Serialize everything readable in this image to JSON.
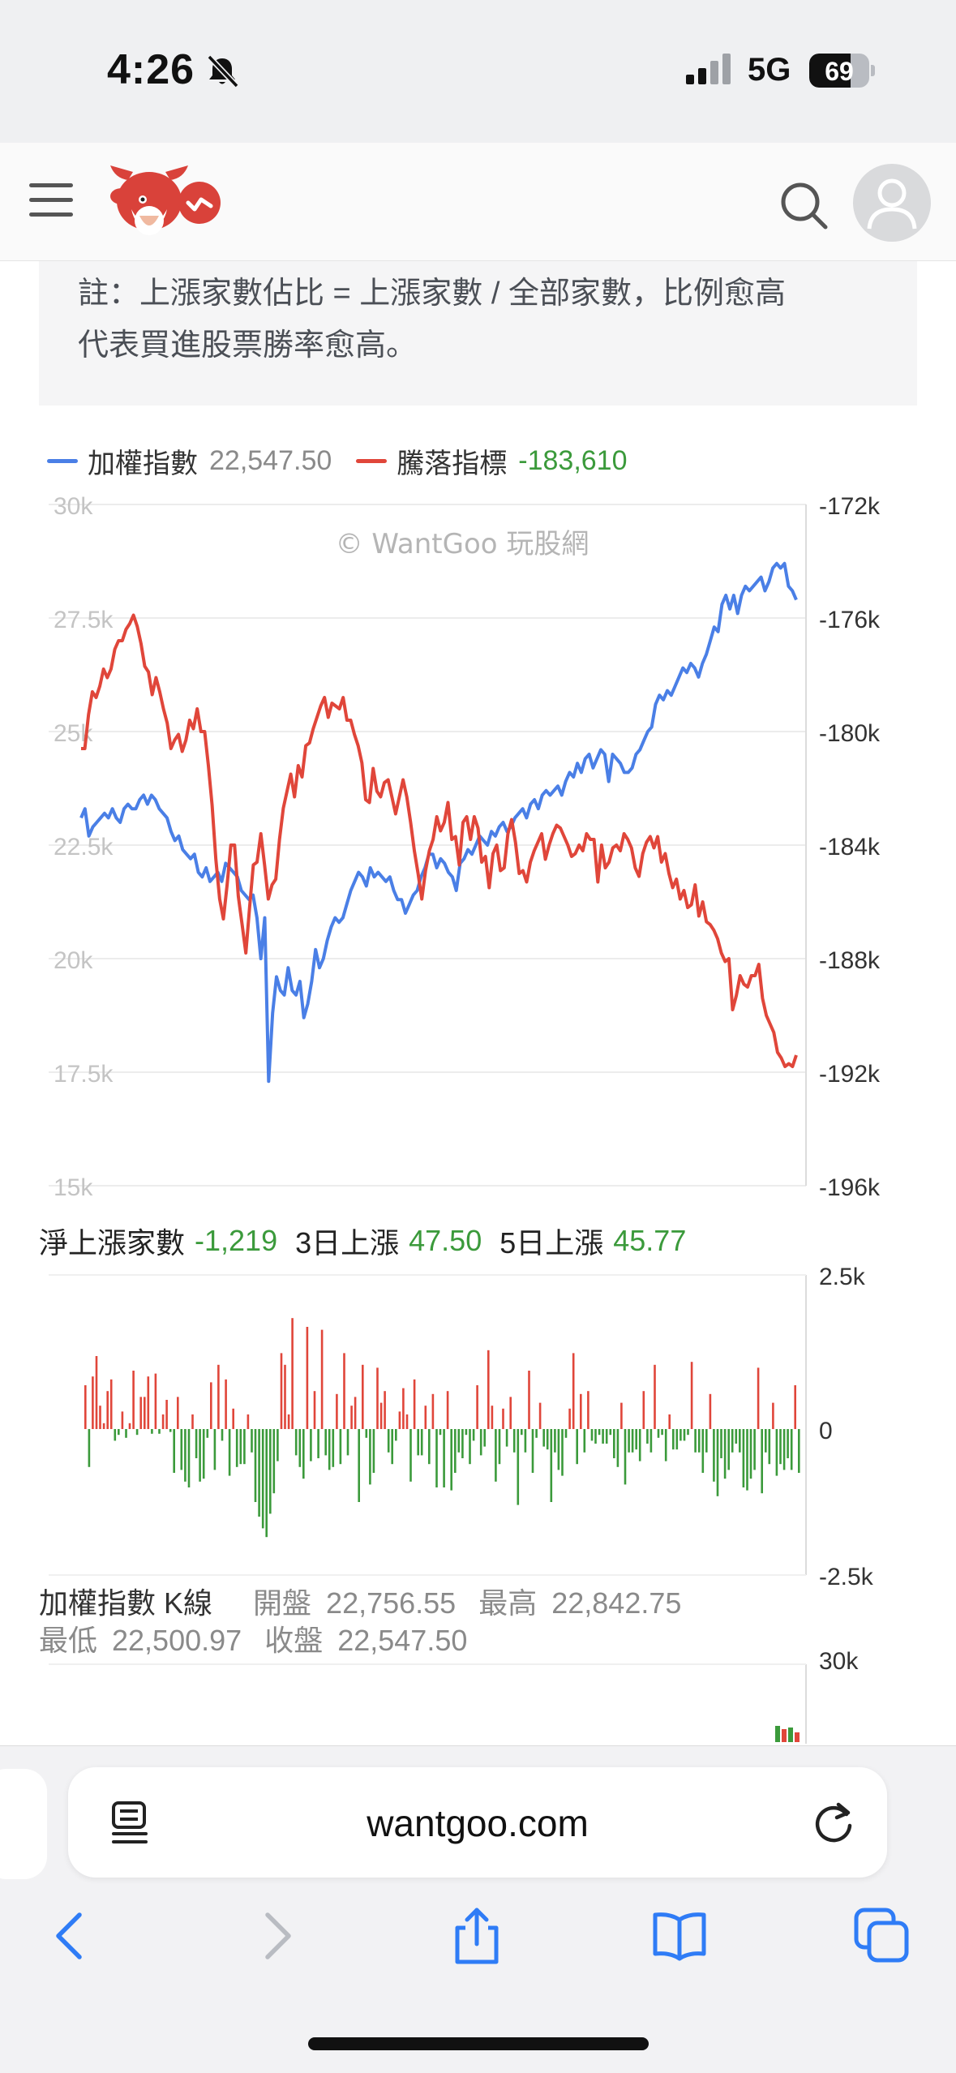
{
  "status": {
    "time": "4:26",
    "network": "5G",
    "battery": "69",
    "battery_level": 0.69
  },
  "header": {
    "menu_icon": "menu-icon",
    "logo_icon": "wantgoo-logo-icon",
    "search_icon": "search-icon",
    "avatar_icon": "user-avatar-icon"
  },
  "note": {
    "line1": "註：上漲家數佔比 = 上漲家數 / 全部家數，比例愈高",
    "line2": "代表買進股票勝率愈高。"
  },
  "legend": {
    "series1_name": "加權指數",
    "series1_value": "22,547.50",
    "series1_color": "#4a7fe6",
    "series2_name": "騰落指標",
    "series2_value": "-183,610",
    "series2_color": "#e0463a"
  },
  "watermark": "© WantGoo 玩股網",
  "chart_data": [
    {
      "type": "line",
      "title": "加權指數 / 騰落指標",
      "left_axis_ticks": [
        "30k",
        "27.5k",
        "25k",
        "22.5k",
        "20k",
        "17.5k",
        "15k"
      ],
      "right_axis_ticks": [
        "-172k",
        "-176k",
        "-180k",
        "-184k",
        "-188k",
        "-192k",
        "-196k"
      ],
      "ylim_left": [
        15000,
        30000
      ],
      "ylim_right": [
        -196000,
        -172000
      ],
      "series": [
        {
          "name": "加權指數",
          "axis": "left",
          "values": [
            23100,
            23300,
            22700,
            22900,
            23000,
            23100,
            23200,
            23100,
            23300,
            23100,
            23000,
            23300,
            23400,
            23300,
            23300,
            23500,
            23600,
            23400,
            23600,
            23500,
            23300,
            23200,
            23100,
            22800,
            22600,
            22700,
            22400,
            22300,
            22200,
            22300,
            21900,
            21800,
            22000,
            21700,
            21800,
            21900,
            21700,
            22100,
            22000,
            21900,
            21800,
            21500,
            21400,
            21300,
            21400,
            20900,
            20000,
            20900,
            17300,
            18800,
            19600,
            19300,
            19200,
            19800,
            19300,
            19200,
            19500,
            18700,
            19000,
            19500,
            20200,
            19800,
            20000,
            20400,
            20700,
            20900,
            20800,
            20900,
            21200,
            21500,
            21700,
            21900,
            21800,
            21600,
            22000,
            21800,
            21900,
            21800,
            21700,
            21800,
            21500,
            21300,
            21300,
            21000,
            21200,
            21400,
            21500,
            21800,
            22000,
            22300,
            22300,
            22000,
            22200,
            22100,
            21900,
            21800,
            21500,
            22100,
            22200,
            22400,
            22300,
            22500,
            22700,
            22600,
            22500,
            22800,
            22700,
            22900,
            23000,
            22800,
            22900,
            23100,
            23200,
            23300,
            23100,
            23400,
            23500,
            23300,
            23600,
            23700,
            23600,
            23700,
            23800,
            23600,
            23900,
            24100,
            24000,
            24300,
            24100,
            24400,
            24500,
            24200,
            24400,
            24600,
            24500,
            23900,
            24500,
            24400,
            24300,
            24100,
            24100,
            24200,
            24500,
            24600,
            24800,
            25000,
            25100,
            25600,
            25800,
            25700,
            25900,
            25800,
            26000,
            26200,
            26400,
            26300,
            26500,
            26400,
            26200,
            26500,
            26700,
            27000,
            27300,
            27200,
            27800,
            28000,
            27700,
            28000,
            27600,
            28000,
            28200,
            28100,
            28200,
            28300,
            28400,
            28100,
            28300,
            28600,
            28700,
            28600,
            28700,
            28200,
            28100,
            27900
          ]
        },
        {
          "name": "騰落指標",
          "axis": "right",
          "values": [
            -180600,
            -180600,
            -179400,
            -178600,
            -178800,
            -178400,
            -177800,
            -178100,
            -177800,
            -177100,
            -176800,
            -176800,
            -176400,
            -176200,
            -175900,
            -176300,
            -176900,
            -177700,
            -177900,
            -178700,
            -178100,
            -178600,
            -179200,
            -179700,
            -180600,
            -180300,
            -180100,
            -180700,
            -180300,
            -179600,
            -179900,
            -179200,
            -180000,
            -180000,
            -181200,
            -182600,
            -184500,
            -185900,
            -186600,
            -185400,
            -184000,
            -184000,
            -185800,
            -186800,
            -187800,
            -186200,
            -184700,
            -184600,
            -183600,
            -184700,
            -185900,
            -185400,
            -185200,
            -183800,
            -182700,
            -182100,
            -181500,
            -182300,
            -181200,
            -181600,
            -180500,
            -180400,
            -179900,
            -179500,
            -179100,
            -178800,
            -179500,
            -179000,
            -179100,
            -179200,
            -178800,
            -179600,
            -179600,
            -180100,
            -180500,
            -181100,
            -182400,
            -182500,
            -181300,
            -182100,
            -182300,
            -181800,
            -181700,
            -182300,
            -182900,
            -182300,
            -181700,
            -182300,
            -183200,
            -184200,
            -185000,
            -185900,
            -184900,
            -184200,
            -183800,
            -183000,
            -183500,
            -183200,
            -182500,
            -183800,
            -183700,
            -184700,
            -183200,
            -183000,
            -183800,
            -183000,
            -183400,
            -184600,
            -184400,
            -185500,
            -184300,
            -184000,
            -184900,
            -184800,
            -183600,
            -183100,
            -183900,
            -185000,
            -184900,
            -185300,
            -184600,
            -184200,
            -183900,
            -183600,
            -184500,
            -184000,
            -183600,
            -183300,
            -183400,
            -183700,
            -184000,
            -184400,
            -184300,
            -184000,
            -184200,
            -183600,
            -183800,
            -183800,
            -185300,
            -184000,
            -184800,
            -184600,
            -184100,
            -184000,
            -184200,
            -183600,
            -183800,
            -184100,
            -184800,
            -185100,
            -184300,
            -183900,
            -183700,
            -184100,
            -183700,
            -184600,
            -184300,
            -185000,
            -185500,
            -185200,
            -185900,
            -185600,
            -186200,
            -186100,
            -185400,
            -186500,
            -186000,
            -186700,
            -186800,
            -187000,
            -187300,
            -187800,
            -188100,
            -188000,
            -189800,
            -189300,
            -188600,
            -188900,
            -189000,
            -188600,
            -188600,
            -188200,
            -189400,
            -190000,
            -190300,
            -190600,
            -191300,
            -191500,
            -191800,
            -191700,
            -191800,
            -191400
          ]
        }
      ]
    },
    {
      "type": "bar",
      "title": "淨上漲家數",
      "ylim": [
        -2500,
        2500
      ],
      "ticks": [
        "2.5k",
        "0",
        "-2.5k"
      ],
      "values": [
        750,
        -650,
        900,
        1250,
        400,
        100,
        650,
        850,
        -200,
        -100,
        300,
        -150,
        100,
        1000,
        -100,
        550,
        550,
        900,
        -80,
        950,
        -80,
        250,
        500,
        -50,
        -750,
        550,
        -700,
        -900,
        -1000,
        250,
        -500,
        -900,
        -850,
        -150,
        800,
        -700,
        1100,
        -200,
        850,
        -800,
        350,
        -650,
        -600,
        -600,
        250,
        -400,
        -1250,
        -1500,
        -1700,
        -1850,
        -1450,
        -1100,
        -550,
        1300,
        1100,
        250,
        1900,
        -450,
        -650,
        -850,
        1750,
        -550,
        650,
        -500,
        1700,
        -450,
        -700,
        -650,
        600,
        -600,
        1300,
        -450,
        400,
        550,
        -1250,
        1100,
        -150,
        -950,
        -750,
        1050,
        450,
        650,
        -400,
        -600,
        -200,
        300,
        700,
        250,
        -900,
        850,
        -450,
        -450,
        400,
        -600,
        600,
        -1000,
        -100,
        -1000,
        650,
        -1050,
        -750,
        -400,
        -500,
        -100,
        -600,
        -200,
        750,
        -450,
        -300,
        1350,
        400,
        -900,
        -600,
        350,
        -300,
        550,
        -400,
        -1300,
        -100,
        -400,
        1000,
        -750,
        -150,
        450,
        -300,
        -350,
        -1250,
        -400,
        -700,
        -800,
        -150,
        350,
        1300,
        -600,
        600,
        -400,
        650,
        -200,
        -250,
        -100,
        -250,
        -250,
        -100,
        -500,
        -650,
        450,
        -950,
        -400,
        -400,
        -350,
        -550,
        650,
        -250,
        -400,
        1100,
        -150,
        -100,
        -550,
        250,
        -350,
        -350,
        -200,
        -200,
        -100,
        1150,
        -400,
        -400,
        -750,
        -400,
        600,
        -900,
        -1150,
        -500,
        -850,
        -700,
        -400,
        -250,
        -400,
        -1000,
        -1050,
        -850,
        -700,
        1050,
        -1100,
        -400,
        -600,
        450,
        -800,
        -600,
        -700,
        -500,
        -700,
        750,
        -750
      ]
    }
  ],
  "stats": {
    "net_label": "淨上漲家數",
    "net_value": "-1,219",
    "d3_label": "3日上漲",
    "d3_value": "47.50",
    "d5_label": "5日上漲",
    "d5_value": "45.77"
  },
  "kline": {
    "title": "加權指數 K線",
    "open_label": "開盤",
    "open_value": "22,756.55",
    "high_label": "最高",
    "high_value": "22,842.75",
    "low_label": "最低",
    "low_value": "22,500.97",
    "close_label": "收盤",
    "close_value": "22,547.50",
    "axis_top": "30k"
  },
  "safari": {
    "url": "wantgoo.com",
    "reader_icon": "reader-icon",
    "reload_icon": "reload-icon",
    "back_icon": "back-icon",
    "forward_icon": "forward-icon",
    "share_icon": "share-icon",
    "bookmarks_icon": "bookmarks-icon",
    "tabs_icon": "tabs-icon"
  }
}
